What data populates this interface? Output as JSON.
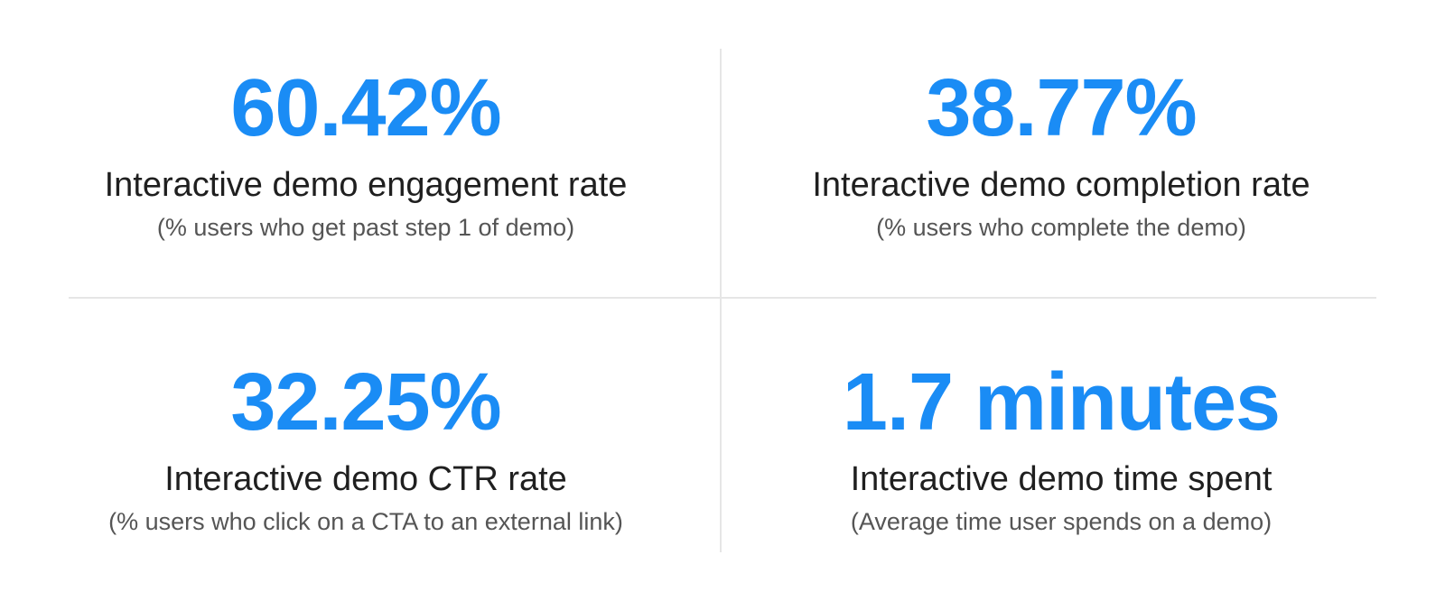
{
  "stats": [
    {
      "value": "60.42%",
      "title": "Interactive demo engagement rate",
      "subtitle": "(% users who get past step 1 of demo)"
    },
    {
      "value": "38.77%",
      "title": "Interactive demo completion rate",
      "subtitle": "(% users who complete the demo)"
    },
    {
      "value": "32.25%",
      "title": "Interactive demo CTR rate",
      "subtitle": "(% users who click on a CTA to an external link)"
    },
    {
      "value": "1.7 minutes",
      "title": "Interactive demo time spent",
      "subtitle": "(Average time user spends on a demo)"
    }
  ],
  "colors": {
    "accent": "#1a8cf5",
    "title": "#1f1f1f",
    "subtitle": "#555555",
    "divider": "#e6e6e6"
  }
}
